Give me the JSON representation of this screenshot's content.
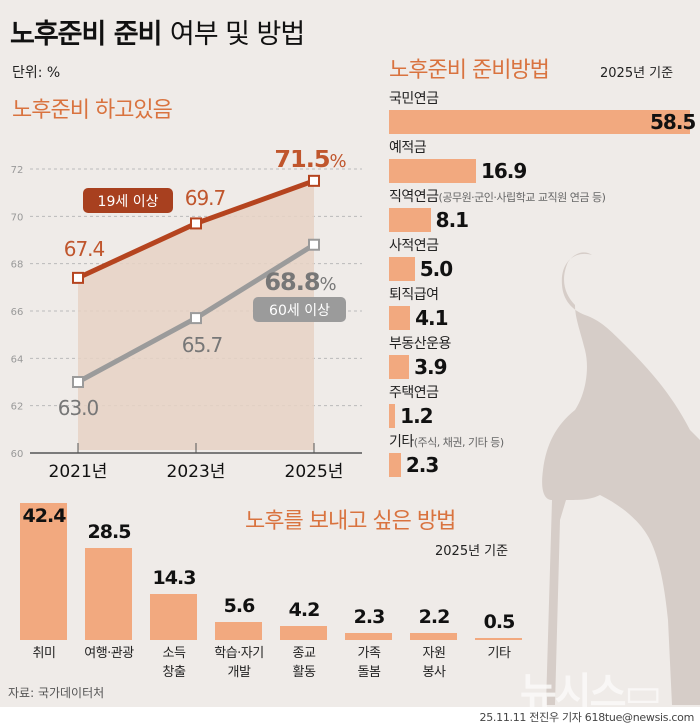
{
  "header": {
    "title_bold": "노후준비 준비",
    "title_light": "여부 및 방법",
    "unit": "단위: %"
  },
  "section_preparing": {
    "title": "노후준비 하고있음"
  },
  "section_methods": {
    "title": "노후준비 준비방법",
    "basis": "2025년 기준"
  },
  "section_wish": {
    "title": "노후를 보내고 싶은 방법",
    "basis": "2025년 기준"
  },
  "source": "자료: 국가데이터처",
  "credit": "25.11.11 전진우 기자 618tue@newsis.com",
  "logo_text": "뉴시스",
  "colors": {
    "accent": "#d9733f",
    "series_19": "#b5441f",
    "series_60": "#9b9b9b",
    "bar": "#f2a97f",
    "background": "#efebe8",
    "silhouette": "#d6cdc8"
  },
  "chart_data": [
    {
      "type": "line",
      "title": "노후준비 하고있음",
      "categories": [
        "2021년",
        "2023년",
        "2025년"
      ],
      "yticks": [
        "60",
        "62",
        "64",
        "66",
        "68",
        "70",
        "72"
      ],
      "ylim": [
        60,
        72
      ],
      "grid": true,
      "series": [
        {
          "name": "19세 이상",
          "values": [
            67.4,
            69.7,
            71.5
          ],
          "labels": [
            "67.4",
            "69.7",
            "71.5"
          ]
        },
        {
          "name": "60세 이상",
          "values": [
            63.0,
            65.7,
            68.8
          ],
          "labels": [
            "63.0",
            "65.7",
            "68.8"
          ]
        }
      ],
      "last_suffix": "%"
    },
    {
      "type": "bar",
      "orientation": "horizontal",
      "title": "노후준비 준비방법",
      "subtitle": "2025년 기준",
      "categories": [
        {
          "label": "국민연금",
          "note": ""
        },
        {
          "label": "예적금",
          "note": ""
        },
        {
          "label": "직역연금",
          "note": "(공무원·군인·사립학교 교직원 연금 등)"
        },
        {
          "label": "사적연금",
          "note": ""
        },
        {
          "label": "퇴직급여",
          "note": ""
        },
        {
          "label": "부동산운용",
          "note": ""
        },
        {
          "label": "주택연금",
          "note": ""
        },
        {
          "label": "기타",
          "note": "(주식, 채권, 기타 등)"
        }
      ],
      "values": [
        58.5,
        16.9,
        8.1,
        5.0,
        4.1,
        3.9,
        1.2,
        2.3
      ],
      "labels": [
        "58.5",
        "16.9",
        "8.1",
        "5.0",
        "4.1",
        "3.9",
        "1.2",
        "2.3"
      ]
    },
    {
      "type": "bar",
      "orientation": "vertical",
      "title": "노후를 보내고 싶은 방법",
      "subtitle": "2025년 기준",
      "categories": [
        [
          "취미"
        ],
        [
          "여행·관광"
        ],
        [
          "소득",
          "창출"
        ],
        [
          "학습·자기",
          "개발"
        ],
        [
          "종교",
          "활동"
        ],
        [
          "가족",
          "돌봄"
        ],
        [
          "자원",
          "봉사"
        ],
        [
          "기타"
        ]
      ],
      "values": [
        42.4,
        28.5,
        14.3,
        5.6,
        4.2,
        2.3,
        2.2,
        0.5
      ],
      "labels": [
        "42.4",
        "28.5",
        "14.3",
        "5.6",
        "4.2",
        "2.3",
        "2.2",
        "0.5"
      ]
    }
  ]
}
